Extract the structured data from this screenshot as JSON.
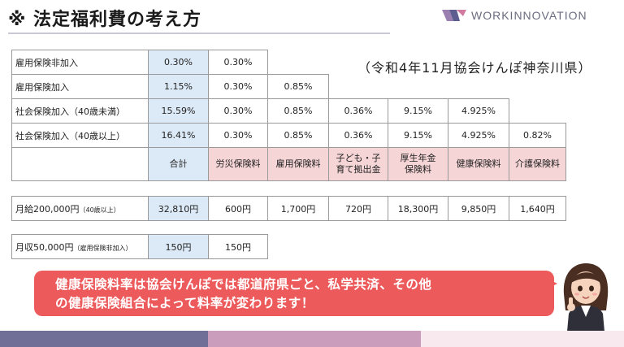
{
  "header": {
    "title": "※ 法定福利費の考え方",
    "logo_text": "WORKINNOVATION"
  },
  "subtitle": "（令和4年11月協会けんぽ神奈川県）",
  "rates_table": {
    "rows": [
      {
        "label": "雇用保険非加入",
        "cells": [
          "0.30%",
          "0.30%",
          "",
          "",
          "",
          "",
          ""
        ]
      },
      {
        "label": "雇用保険加入",
        "cells": [
          "1.15%",
          "0.30%",
          "0.85%",
          "",
          "",
          "",
          ""
        ]
      },
      {
        "label": "社会保険加入（40歳未満）",
        "cells": [
          "15.59%",
          "0.30%",
          "0.85%",
          "0.36%",
          "9.15%",
          "4.925%",
          ""
        ]
      },
      {
        "label": "社会保険加入（40歳以上）",
        "cells": [
          "16.41%",
          "0.30%",
          "0.85%",
          "0.36%",
          "9.15%",
          "4.925%",
          "0.82%"
        ]
      }
    ],
    "headers": [
      {
        "l1": "合計",
        "l2": ""
      },
      {
        "l1": "労災保険料",
        "l2": ""
      },
      {
        "l1": "雇用保険料",
        "l2": ""
      },
      {
        "l1": "子ども・子",
        "l2": "育て拠出金"
      },
      {
        "l1": "厚生年金",
        "l2": "保険料"
      },
      {
        "l1": "健康保険料",
        "l2": ""
      },
      {
        "l1": "介護保険料",
        "l2": ""
      }
    ]
  },
  "salary_row": {
    "label": "月給200,000円",
    "note": "（40歳以上）",
    "values": [
      "32,810円",
      "600円",
      "1,700円",
      "720円",
      "18,300円",
      "9,850円",
      "1,640円"
    ]
  },
  "income_row": {
    "label": "月収50,000円",
    "note": "（雇用保険非加入）",
    "values": [
      "150円",
      "150円"
    ]
  },
  "callout": {
    "line1": "健康保険料率は協会けんぽでは都道府県ごと、私学共済、その他",
    "line2": "の健康保険組合によって料率が変わります！"
  },
  "colors": {
    "total_bg": "#dce9f6",
    "header_pink": "#f6d5d7",
    "callout": "#ec5a5b",
    "footer": [
      "#6f6f98",
      "#c99dbb",
      "#f7e9ee"
    ]
  },
  "icons": [
    "logo-mark-icon",
    "presenter-avatar"
  ]
}
